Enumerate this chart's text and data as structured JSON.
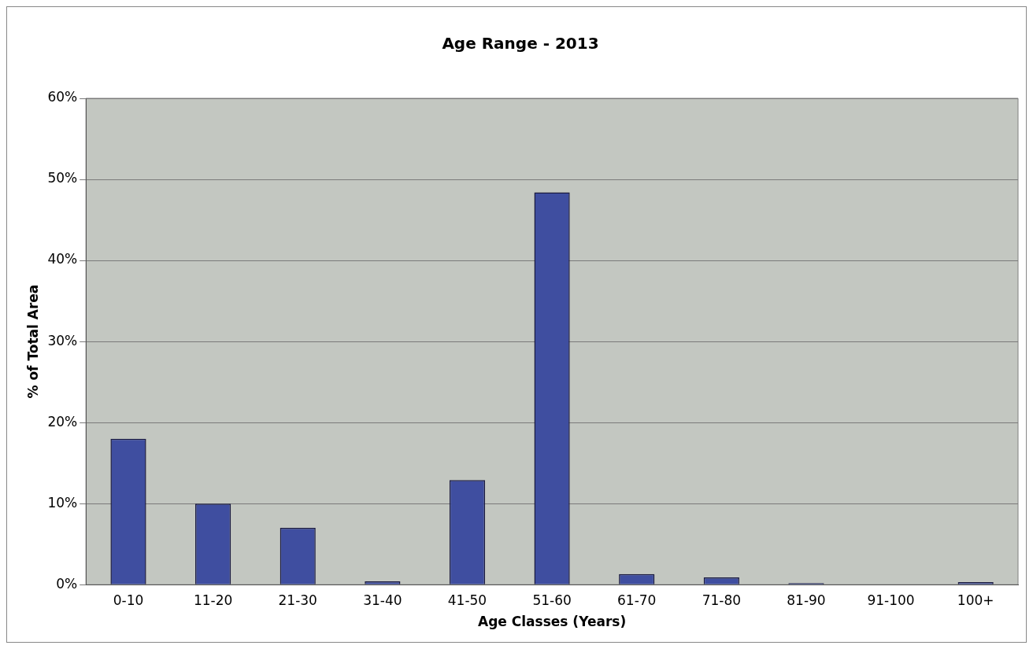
{
  "chart_data": {
    "type": "bar",
    "title": "Age Range - 2013",
    "xlabel": "Age Classes (Years)",
    "ylabel": "% of Total Area",
    "categories": [
      "0-10",
      "11-20",
      "21-30",
      "31-40",
      "41-50",
      "51-60",
      "61-70",
      "71-80",
      "81-90",
      "91-100",
      "100+"
    ],
    "values": [
      18,
      10,
      7,
      0.4,
      12.9,
      48.4,
      1.3,
      0.9,
      0.2,
      0,
      0.3
    ],
    "color": "#3f4ea0",
    "ylim": [
      0,
      60
    ],
    "yticks": [
      {
        "value": 0,
        "label": "0%"
      },
      {
        "value": 10,
        "label": "10%"
      },
      {
        "value": 20,
        "label": "20%"
      },
      {
        "value": 30,
        "label": "30%"
      },
      {
        "value": 40,
        "label": "40%"
      },
      {
        "value": 50,
        "label": "50%"
      },
      {
        "value": 60,
        "label": "60%"
      }
    ],
    "grid": "y",
    "legend": false
  }
}
